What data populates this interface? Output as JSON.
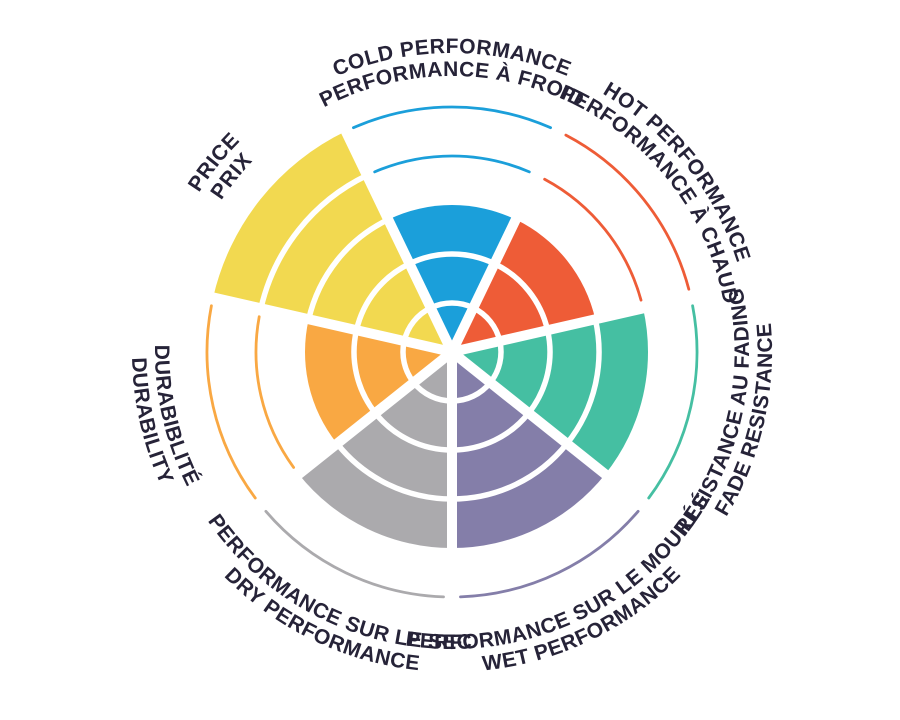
{
  "chart_data": {
    "type": "pie",
    "subtype": "polar-sector-rating-wheel",
    "scale_max": 5,
    "background": "#ffffff",
    "gridline_color": "#ffffff",
    "label_color": "#262338",
    "legend_position": "around-perimeter",
    "sectors": [
      {
        "id": "cold-performance",
        "lines": [
          "COLD PERFORMANCE",
          "PERFORMANCE À FROID"
        ],
        "value": 3,
        "color": "#1B9FDA",
        "label_style": "outward"
      },
      {
        "id": "hot-performance",
        "lines": [
          "HOT PERFORMANCE",
          "PERFORMANCE À CHAUD"
        ],
        "value": 3,
        "color": "#EE5C37",
        "label_style": "outward"
      },
      {
        "id": "fade-resistance",
        "lines": [
          "RÉSISTANCE AU FADING",
          "FADE RESISTANCE"
        ],
        "value": 4,
        "color": "#45BFA2",
        "label_style": "inward"
      },
      {
        "id": "wet-performance",
        "lines": [
          "PERFORMANCE SUR LE MOUILLÉ",
          "WET PERFORMANCE"
        ],
        "value": 4,
        "color": "#847EA9",
        "label_style": "inward"
      },
      {
        "id": "dry-performance",
        "lines": [
          "PERFORMANCE SUR LE SEC",
          "DRY PERFORMANCE"
        ],
        "value": 4,
        "color": "#ABAAAD",
        "label_style": "inward"
      },
      {
        "id": "durability",
        "lines": [
          "DURABIBLITÉ",
          "DURABILITY"
        ],
        "value": 3,
        "color": "#F9A843",
        "label_style": "inward"
      },
      {
        "id": "price",
        "lines": [
          "PRICE",
          "PRIX"
        ],
        "value": 5,
        "color": "#F2D950",
        "label_style": "outward"
      }
    ]
  }
}
